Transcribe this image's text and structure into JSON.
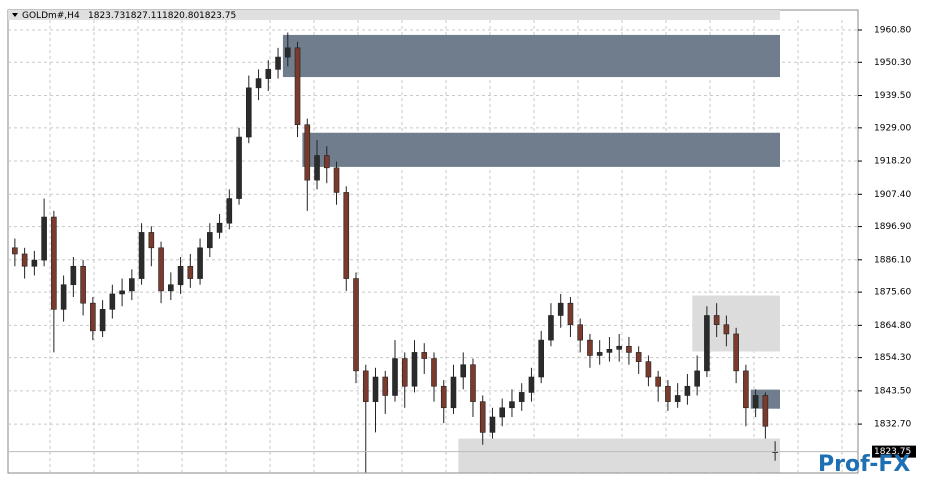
{
  "chart_data": {
    "type": "candlestick",
    "symbol": "GOLDm#,H4",
    "header_values": [
      "1823.73",
      "1827.11",
      "1820.80",
      "1823.75"
    ],
    "ylim": [
      1816.8,
      1967.3
    ],
    "yticks": [
      {
        "value": 1960.8,
        "label": "1960.80"
      },
      {
        "value": 1950.3,
        "label": "1950.30"
      },
      {
        "value": 1939.5,
        "label": "1939.50"
      },
      {
        "value": 1929,
        "label": "1929.00"
      },
      {
        "value": 1918.2,
        "label": "1918.20"
      },
      {
        "value": 1907.4,
        "label": "1907.40"
      },
      {
        "value": 1896.9,
        "label": "1896.90"
      },
      {
        "value": 1886.1,
        "label": "1886.10"
      },
      {
        "value": 1875.6,
        "label": "1875.60"
      },
      {
        "value": 1864.8,
        "label": "1864.80"
      },
      {
        "value": 1854.3,
        "label": "1854.30"
      },
      {
        "value": 1843.5,
        "label": "1843.50"
      },
      {
        "value": 1832.7,
        "label": "1832.70"
      }
    ],
    "grid": true,
    "up_color": "#2b2b2b",
    "down_color": "#7a3a2c",
    "last_price": {
      "value": 1823.75,
      "label": "1823.75"
    },
    "candles": {
      "open": [
        1890,
        1888,
        1884,
        1886,
        1900,
        1870,
        1878,
        1884,
        1872,
        1863,
        1870,
        1875,
        1876,
        1880,
        1895,
        1890,
        1876,
        1878,
        1884,
        1880,
        1890,
        1895,
        1898,
        1906,
        1926,
        1942,
        1945,
        1948,
        1952,
        1955,
        1930,
        1912,
        1920,
        1916,
        1908,
        1880,
        1850,
        1840,
        1848,
        1842,
        1854,
        1845,
        1856,
        1854,
        1845,
        1838,
        1848,
        1852,
        1840,
        1830,
        1835,
        1838,
        1840,
        1843,
        1848,
        1860,
        1868,
        1872,
        1865,
        1860,
        1855,
        1856,
        1857,
        1858,
        1856,
        1853,
        1848,
        1845,
        1840,
        1842,
        1845,
        1850,
        1868,
        1865,
        1862,
        1850,
        1838,
        1842,
        1823.73
      ],
      "high": [
        1893,
        1890,
        1889,
        1906,
        1902,
        1881,
        1887,
        1886,
        1874,
        1873,
        1878,
        1880,
        1883,
        1898,
        1897,
        1892,
        1882,
        1887,
        1888,
        1893,
        1898,
        1901,
        1909,
        1929,
        1946,
        1948,
        1951,
        1955,
        1960,
        1957,
        1932,
        1925,
        1923,
        1918,
        1910,
        1882,
        1852,
        1851,
        1850,
        1860,
        1856,
        1860,
        1859,
        1856,
        1847,
        1852,
        1856,
        1854,
        1842,
        1838,
        1841,
        1844,
        1846,
        1851,
        1863,
        1872,
        1875,
        1874,
        1867,
        1862,
        1860,
        1861,
        1862,
        1861,
        1858,
        1855,
        1850,
        1847,
        1846,
        1849,
        1855,
        1871,
        1872,
        1868,
        1864,
        1852,
        1844,
        1843,
        1827.11
      ],
      "low": [
        1884,
        1880,
        1881,
        1884,
        1856,
        1866,
        1874,
        1868,
        1860,
        1861,
        1867,
        1871,
        1873,
        1878,
        1884,
        1872,
        1873,
        1875,
        1877,
        1878,
        1887,
        1893,
        1896,
        1904,
        1924,
        1938,
        1941,
        1945,
        1949,
        1926,
        1902,
        1909,
        1911,
        1904,
        1876,
        1846,
        1817,
        1830,
        1836,
        1840,
        1838,
        1843,
        1849,
        1840,
        1833,
        1836,
        1844,
        1835,
        1826,
        1828,
        1832,
        1835,
        1837,
        1840,
        1846,
        1858,
        1864,
        1861,
        1856,
        1851,
        1852,
        1853,
        1853,
        1852,
        1849,
        1845,
        1840,
        1837,
        1838,
        1839,
        1842,
        1848,
        1861,
        1858,
        1846,
        1832,
        1835,
        1828,
        1820.8
      ],
      "close": [
        1888,
        1884,
        1886,
        1900,
        1870,
        1878,
        1884,
        1872,
        1863,
        1870,
        1875,
        1876,
        1880,
        1895,
        1890,
        1876,
        1878,
        1884,
        1880,
        1890,
        1895,
        1898,
        1906,
        1926,
        1942,
        1945,
        1948,
        1952,
        1955,
        1930,
        1912,
        1920,
        1916,
        1908,
        1880,
        1850,
        1840,
        1848,
        1842,
        1854,
        1845,
        1856,
        1854,
        1845,
        1838,
        1848,
        1852,
        1840,
        1830,
        1835,
        1838,
        1840,
        1843,
        1848,
        1860,
        1868,
        1872,
        1865,
        1860,
        1855,
        1856,
        1857,
        1858,
        1856,
        1853,
        1848,
        1845,
        1840,
        1842,
        1845,
        1850,
        1868,
        1865,
        1862,
        1850,
        1838,
        1842,
        1832,
        1823.75
      ]
    },
    "zones": [
      {
        "top": 1959.2,
        "bottom": 1945.5,
        "start": 28,
        "color": "#6f7d8c"
      },
      {
        "top": 1927.4,
        "bottom": 1916.3,
        "start": 30,
        "color": "#6f7d8c"
      },
      {
        "top": 1874.5,
        "bottom": 1856.3,
        "start": 70,
        "color": "#dcdcdc"
      },
      {
        "top": 1843.9,
        "bottom": 1837.7,
        "start": 76,
        "color": "#6f7d8c"
      },
      {
        "top": 1828,
        "bottom": 1817,
        "start": 46,
        "color": "#dcdcdc"
      }
    ],
    "watermark": "Prof-FX"
  }
}
